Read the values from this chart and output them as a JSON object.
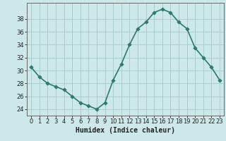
{
  "x": [
    0,
    1,
    2,
    3,
    4,
    5,
    6,
    7,
    8,
    9,
    10,
    11,
    12,
    13,
    14,
    15,
    16,
    17,
    18,
    19,
    20,
    21,
    22,
    23
  ],
  "y": [
    30.5,
    29.0,
    28.0,
    27.5,
    27.0,
    26.0,
    25.0,
    24.5,
    24.0,
    25.0,
    28.5,
    31.0,
    34.0,
    36.5,
    37.5,
    39.0,
    39.5,
    39.0,
    37.5,
    36.5,
    33.5,
    32.0,
    30.5,
    28.5
  ],
  "xlabel": "Humidex (Indice chaleur)",
  "xlim": [
    -0.5,
    23.5
  ],
  "ylim": [
    23.0,
    40.5
  ],
  "yticks": [
    24,
    26,
    28,
    30,
    32,
    34,
    36,
    38
  ],
  "xticks": [
    0,
    1,
    2,
    3,
    4,
    5,
    6,
    7,
    8,
    9,
    10,
    11,
    12,
    13,
    14,
    15,
    16,
    17,
    18,
    19,
    20,
    21,
    22,
    23
  ],
  "line_color": "#2d7a6e",
  "marker_color": "#2d7a6e",
  "bg_color": "#cce8e8",
  "grid_color": "#aacfcf",
  "axis_color": "#666666",
  "font_color": "#222222",
  "xlabel_fontsize": 7,
  "tick_fontsize": 6,
  "line_width": 1.2,
  "marker_size": 2.8
}
